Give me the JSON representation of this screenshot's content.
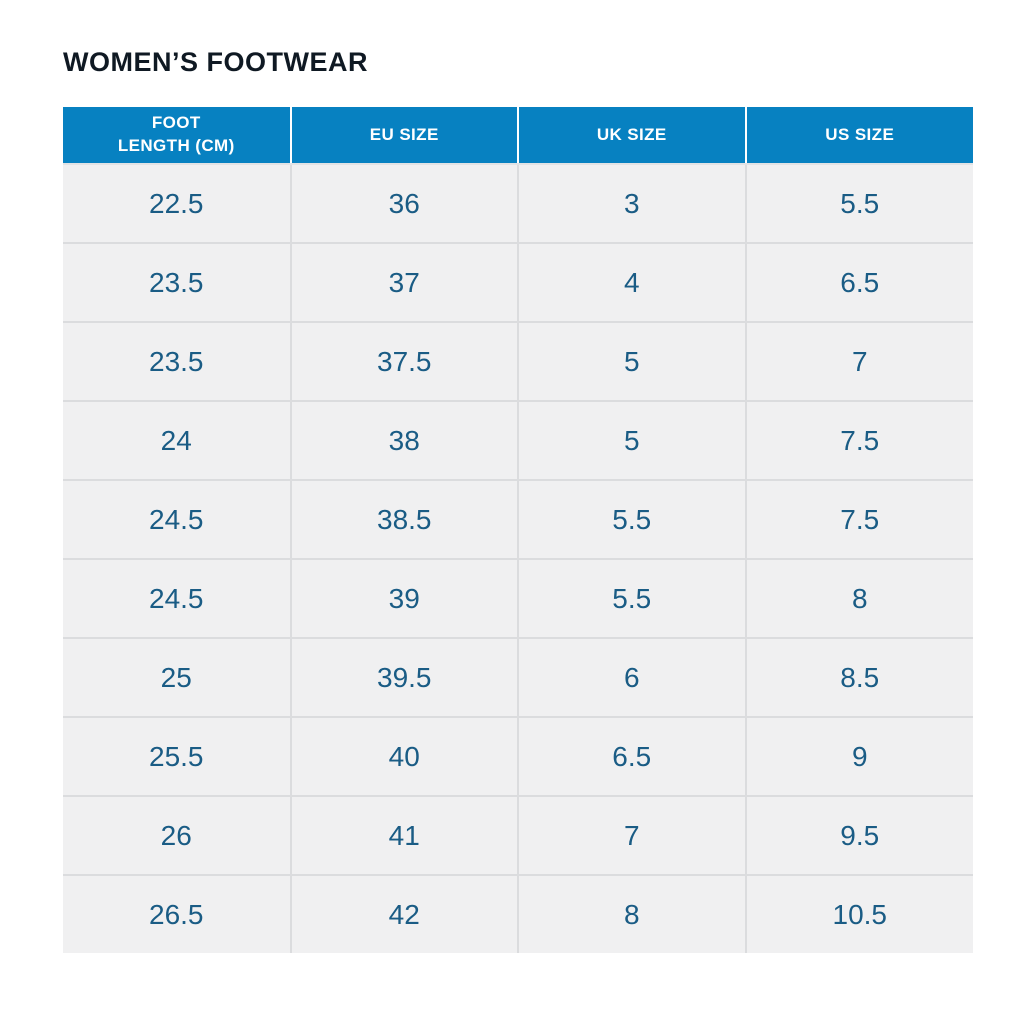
{
  "title": "WOMEN’S FOOTWEAR",
  "colors": {
    "header_bg": "#0781c1",
    "header_text": "#ffffff",
    "row_bg": "#f0f0f1",
    "cell_text": "#1a5c85",
    "grid_border": "#dbdcde",
    "title_text": "#0f1923",
    "page_bg": "#ffffff"
  },
  "table": {
    "columns": [
      {
        "label": "FOOT\nLENGTH (CM)"
      },
      {
        "label": "EU SIZE"
      },
      {
        "label": "UK SIZE"
      },
      {
        "label": "US SIZE"
      }
    ],
    "rows": [
      {
        "foot_length_cm": "22.5",
        "eu_size": "36",
        "uk_size": "3",
        "us_size": "5.5"
      },
      {
        "foot_length_cm": "23.5",
        "eu_size": "37",
        "uk_size": "4",
        "us_size": "6.5"
      },
      {
        "foot_length_cm": "23.5",
        "eu_size": "37.5",
        "uk_size": "5",
        "us_size": "7"
      },
      {
        "foot_length_cm": "24",
        "eu_size": "38",
        "uk_size": "5",
        "us_size": "7.5"
      },
      {
        "foot_length_cm": "24.5",
        "eu_size": "38.5",
        "uk_size": "5.5",
        "us_size": "7.5"
      },
      {
        "foot_length_cm": "24.5",
        "eu_size": "39",
        "uk_size": "5.5",
        "us_size": "8"
      },
      {
        "foot_length_cm": "25",
        "eu_size": "39.5",
        "uk_size": "6",
        "us_size": "8.5"
      },
      {
        "foot_length_cm": "25.5",
        "eu_size": "40",
        "uk_size": "6.5",
        "us_size": "9"
      },
      {
        "foot_length_cm": "26",
        "eu_size": "41",
        "uk_size": "7",
        "us_size": "9.5"
      },
      {
        "foot_length_cm": "26.5",
        "eu_size": "42",
        "uk_size": "8",
        "us_size": "10.5"
      }
    ]
  }
}
